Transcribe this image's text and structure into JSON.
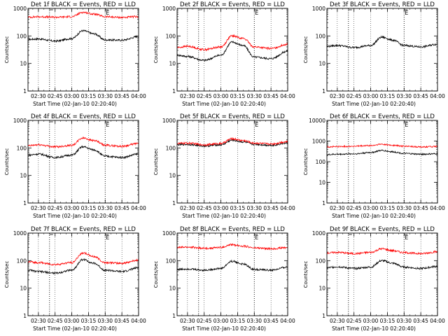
{
  "colors": {
    "events": "#000000",
    "lld": "#ff0000",
    "axis": "#000000",
    "background": "#ffffff"
  },
  "chart_data": [
    {
      "type": "line",
      "title": "Det 1f BLACK = Events, RED = LLD",
      "xlabel": "Start Time (02-Jan-10 02:20:40)",
      "ylabel": "Counts/sec",
      "xlim": [
        "02:20:40",
        "04:00:00"
      ],
      "ylim": [
        1,
        1000
      ],
      "yscale": "log",
      "xticks": [
        "02:30",
        "02:45",
        "03:00",
        "03:15",
        "03:30",
        "03:45",
        "04:00"
      ],
      "yticks": [
        "1",
        "10",
        "100",
        "1000"
      ],
      "markers": [
        {
          "time": "02:40",
          "label": ""
        },
        {
          "time": "03:30",
          "label": "E"
        }
      ],
      "x": [
        "02:21",
        "02:30",
        "02:45",
        "03:00",
        "03:10",
        "03:20",
        "03:30",
        "03:45",
        "04:00"
      ],
      "series": [
        {
          "name": "Events",
          "values": [
            75,
            78,
            65,
            80,
            155,
            120,
            72,
            70,
            95
          ]
        },
        {
          "name": "LLD",
          "values": [
            480,
            500,
            480,
            500,
            720,
            620,
            500,
            470,
            500
          ]
        }
      ]
    },
    {
      "type": "line",
      "title": "Det 2f BLACK = Events, RED = LLD",
      "xlabel": "Start Time (02-Jan-10 02:20:40)",
      "ylabel": "Counts/sec",
      "xlim": [
        "02:20:40",
        "04:00:00"
      ],
      "ylim": [
        1,
        1000
      ],
      "yscale": "log",
      "xticks": [
        "02:30",
        "02:45",
        "03:00",
        "03:15",
        "03:30",
        "03:45",
        "04:00"
      ],
      "yticks": [
        "1",
        "10",
        "100",
        "1000"
      ],
      "markers": [
        {
          "time": "02:40",
          "label": ""
        },
        {
          "time": "03:30",
          "label": "E"
        }
      ],
      "x": [
        "02:21",
        "02:30",
        "02:45",
        "03:00",
        "03:10",
        "03:20",
        "03:30",
        "03:45",
        "04:00"
      ],
      "series": [
        {
          "name": "Events",
          "values": [
            20,
            18,
            13,
            20,
            60,
            45,
            17,
            15,
            28
          ]
        },
        {
          "name": "LLD",
          "values": [
            38,
            42,
            32,
            40,
            100,
            82,
            40,
            35,
            50
          ]
        }
      ]
    },
    {
      "type": "line",
      "title": "Det 3f BLACK = Events, RED = LLD",
      "xlabel": "Start Time (02-Jan-10 02:20:40)",
      "ylabel": "Counts/sec",
      "xlim": [
        "02:20:40",
        "04:00:00"
      ],
      "ylim": [
        1,
        1000
      ],
      "yscale": "log",
      "xticks": [
        "02:30",
        "02:45",
        "03:00",
        "03:15",
        "03:30",
        "03:45",
        "04:00"
      ],
      "yticks": [
        "1",
        "10",
        "100",
        "1000"
      ],
      "markers": [
        {
          "time": "02:40",
          "label": ""
        },
        {
          "time": "03:30",
          "label": "E"
        }
      ],
      "x": [
        "02:21",
        "02:30",
        "02:45",
        "03:00",
        "03:10",
        "03:20",
        "03:30",
        "03:45",
        "04:00"
      ],
      "series": [
        {
          "name": "Events",
          "values": [
            42,
            45,
            38,
            45,
            90,
            70,
            45,
            40,
            50
          ]
        }
      ]
    },
    {
      "type": "line",
      "title": "Det 4f BLACK = Events, RED = LLD",
      "xlabel": "Start Time (02-Jan-10 02:20:40)",
      "ylabel": "Counts/sec",
      "xlim": [
        "02:20:40",
        "04:00:00"
      ],
      "ylim": [
        1,
        1000
      ],
      "yscale": "log",
      "xticks": [
        "02:30",
        "02:45",
        "03:00",
        "03:15",
        "03:30",
        "03:45",
        "04:00"
      ],
      "yticks": [
        "1",
        "10",
        "100",
        "1000"
      ],
      "markers": [
        {
          "time": "02:40",
          "label": ""
        },
        {
          "time": "03:30",
          "label": "E"
        }
      ],
      "x": [
        "02:21",
        "02:30",
        "02:45",
        "03:00",
        "03:10",
        "03:20",
        "03:30",
        "03:45",
        "04:00"
      ],
      "series": [
        {
          "name": "Events",
          "values": [
            55,
            60,
            45,
            55,
            110,
            85,
            50,
            45,
            60
          ]
        },
        {
          "name": "LLD",
          "values": [
            120,
            130,
            110,
            125,
            230,
            185,
            125,
            115,
            145
          ]
        }
      ]
    },
    {
      "type": "line",
      "title": "Det 5f BLACK = Events, RED = LLD",
      "xlabel": "Start Time (02-Jan-10 02:20:40)",
      "ylabel": "Counts/sec",
      "xlim": [
        "02:20:40",
        "04:00:00"
      ],
      "ylim": [
        1,
        1000
      ],
      "yscale": "log",
      "xticks": [
        "02:30",
        "02:45",
        "03:00",
        "03:15",
        "03:30",
        "03:45",
        "04:00"
      ],
      "yticks": [
        "1",
        "10",
        "100",
        "1000"
      ],
      "markers": [
        {
          "time": "02:40",
          "label": ""
        },
        {
          "time": "03:30",
          "label": "E"
        }
      ],
      "x": [
        "02:21",
        "02:30",
        "02:45",
        "03:00",
        "03:10",
        "03:20",
        "03:30",
        "03:45",
        "04:00"
      ],
      "series": [
        {
          "name": "Events",
          "values": [
            130,
            135,
            118,
            130,
            190,
            165,
            135,
            125,
            150
          ]
        },
        {
          "name": "LLD",
          "values": [
            145,
            150,
            130,
            145,
            215,
            185,
            150,
            140,
            170
          ]
        }
      ]
    },
    {
      "type": "line",
      "title": "Det 6f BLACK = Events, RED = LLD",
      "xlabel": "Start Time (02-Jan-10 02:20:40)",
      "ylabel": "Counts/sec",
      "xlim": [
        "02:20:40",
        "04:00:00"
      ],
      "ylim": [
        1,
        10000
      ],
      "yscale": "log",
      "xticks": [
        "02:30",
        "02:45",
        "03:00",
        "03:15",
        "03:30",
        "03:45",
        "04:00"
      ],
      "yticks": [
        "1",
        "10",
        "100",
        "1000",
        "10000"
      ],
      "markers": [
        {
          "time": "02:40",
          "label": ""
        },
        {
          "time": "03:30",
          "label": "E"
        }
      ],
      "x": [
        "02:21",
        "02:30",
        "02:45",
        "03:00",
        "03:10",
        "03:20",
        "03:30",
        "03:45",
        "04:00"
      ],
      "series": [
        {
          "name": "Events",
          "values": [
            220,
            230,
            240,
            280,
            350,
            300,
            250,
            230,
            240
          ]
        },
        {
          "name": "LLD",
          "values": [
            520,
            540,
            560,
            600,
            700,
            620,
            560,
            520,
            540
          ]
        }
      ]
    },
    {
      "type": "line",
      "title": "Det 7f BLACK = Events, RED = LLD",
      "xlabel": "Start Time (02-Jan-10 02:20:40)",
      "ylabel": "Counts/sec",
      "xlim": [
        "02:20:40",
        "04:00:00"
      ],
      "ylim": [
        1,
        1000
      ],
      "yscale": "log",
      "xticks": [
        "02:30",
        "02:45",
        "03:00",
        "03:15",
        "03:30",
        "03:45",
        "04:00"
      ],
      "yticks": [
        "1",
        "10",
        "100",
        "1000"
      ],
      "markers": [
        {
          "time": "02:40",
          "label": ""
        },
        {
          "time": "03:30",
          "label": "E"
        }
      ],
      "x": [
        "02:21",
        "02:30",
        "02:45",
        "03:00",
        "03:10",
        "03:20",
        "03:30",
        "03:45",
        "04:00"
      ],
      "series": [
        {
          "name": "Events",
          "values": [
            45,
            40,
            35,
            45,
            110,
            80,
            45,
            40,
            55
          ]
        },
        {
          "name": "LLD",
          "values": [
            90,
            85,
            72,
            85,
            190,
            140,
            85,
            80,
            105
          ]
        }
      ]
    },
    {
      "type": "line",
      "title": "Det 8f BLACK = Events, RED = LLD",
      "xlabel": "Start Time (02-Jan-10 02:20:40)",
      "ylabel": "Counts/sec",
      "xlim": [
        "02:20:40",
        "04:00:00"
      ],
      "ylim": [
        1,
        1000
      ],
      "yscale": "log",
      "xticks": [
        "02:30",
        "02:45",
        "03:00",
        "03:15",
        "03:30",
        "03:45",
        "04:00"
      ],
      "yticks": [
        "1",
        "10",
        "100",
        "1000"
      ],
      "markers": [
        {
          "time": "02:40",
          "label": ""
        },
        {
          "time": "03:30",
          "label": "E"
        }
      ],
      "x": [
        "02:21",
        "02:30",
        "02:45",
        "03:00",
        "03:10",
        "03:20",
        "03:30",
        "03:45",
        "04:00"
      ],
      "series": [
        {
          "name": "Events",
          "values": [
            48,
            50,
            45,
            52,
            95,
            75,
            48,
            45,
            58
          ]
        },
        {
          "name": "LLD",
          "values": [
            300,
            310,
            280,
            300,
            380,
            340,
            290,
            270,
            300
          ]
        }
      ]
    },
    {
      "type": "line",
      "title": "Det 9f BLACK = Events, RED = LLD",
      "xlabel": "Start Time (02-Jan-10 02:20:40)",
      "ylabel": "Counts/sec",
      "xlim": [
        "02:20:40",
        "04:00:00"
      ],
      "ylim": [
        1,
        1000
      ],
      "yscale": "log",
      "xticks": [
        "02:30",
        "02:45",
        "03:00",
        "03:15",
        "03:30",
        "03:45",
        "04:00"
      ],
      "yticks": [
        "1",
        "10",
        "100",
        "1000"
      ],
      "markers": [
        {
          "time": "02:40",
          "label": ""
        },
        {
          "time": "03:30",
          "label": "E"
        }
      ],
      "x": [
        "02:21",
        "02:30",
        "02:45",
        "03:00",
        "03:10",
        "03:20",
        "03:30",
        "03:45",
        "04:00"
      ],
      "series": [
        {
          "name": "Events",
          "values": [
            55,
            60,
            52,
            58,
            100,
            80,
            58,
            52,
            62
          ]
        },
        {
          "name": "LLD",
          "values": [
            190,
            200,
            180,
            200,
            270,
            230,
            195,
            180,
            210
          ]
        }
      ]
    }
  ]
}
